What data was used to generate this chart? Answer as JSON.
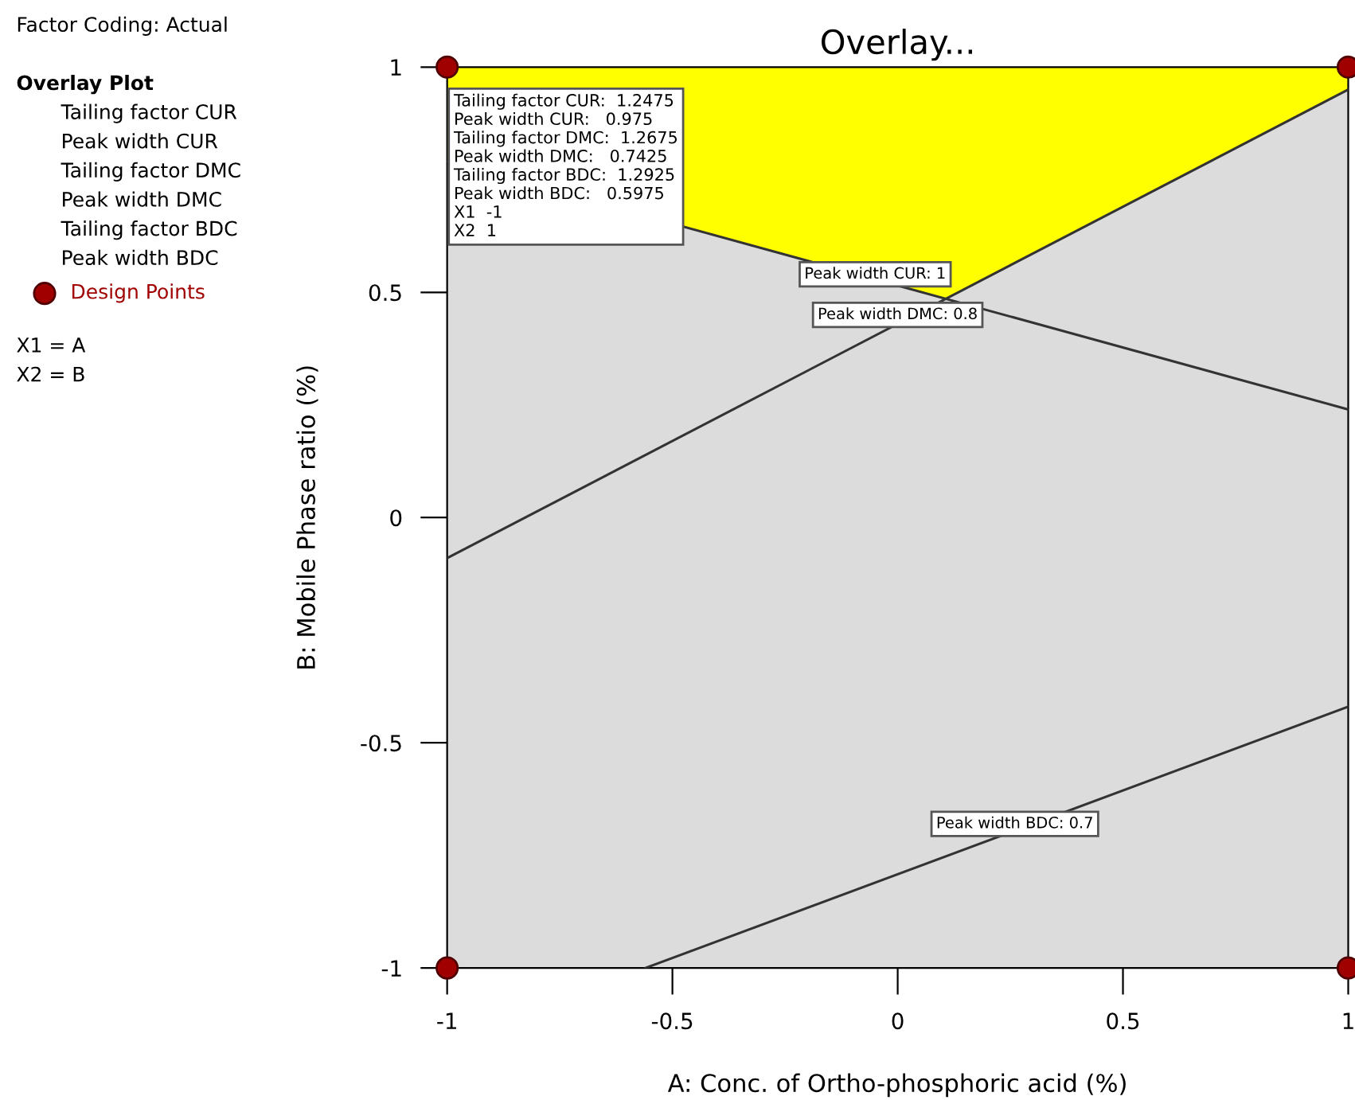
{
  "chart_data": {
    "type": "line",
    "title": "Overlay...",
    "xlabel": "A: Conc. of Ortho-phosphoric acid (%)",
    "ylabel": "B: Mobile Phase ratio (%)",
    "xlim": [
      -1,
      1
    ],
    "ylim": [
      -1,
      1
    ],
    "xticks": [
      -1,
      -0.5,
      0,
      0.5,
      1
    ],
    "yticks": [
      -1,
      -0.5,
      0,
      0.5,
      1
    ],
    "grid": false,
    "legend": "left",
    "series": [
      {
        "type": "area",
        "color": "#ffff00",
        "x": [
          -1,
          0.107,
          1,
          1,
          -1
        ],
        "values": [
          0.79,
          0.486,
          0.95,
          1,
          1
        ]
      },
      {
        "color": "#333333",
        "x": [
          -1,
          1
        ],
        "values": [
          0.79,
          0.24
        ]
      },
      {
        "color": "#333333",
        "x": [
          -1,
          1
        ],
        "values": [
          -0.09,
          0.95
        ]
      },
      {
        "color": "#333333",
        "x": [
          -0.56,
          1
        ],
        "values": [
          -1,
          -0.42
        ]
      },
      {
        "type": "scatter",
        "name": "Design Points",
        "color": "#a00000",
        "marker": "circle",
        "x": [
          -1,
          1,
          -1,
          1
        ],
        "values": [
          1,
          1,
          -1,
          -1
        ]
      }
    ],
    "annotations": [
      "Factor Coding: Actual",
      "Overlay Plot",
      "Tailing factor CUR",
      "Peak width CUR",
      "Tailing factor DMC",
      "Peak width DMC",
      "Tailing factor BDC",
      "Peak width BDC",
      "X1 = A",
      "X2 = B",
      {
        "text": "Tailing factor CUR:  1.2475\nPeak width CUR:   0.975\nTailing factor DMC:  1.2675\nPeak width DMC:   0.7425\nTailing factor BDC:  1.2925\nPeak width BDC:   0.5975\nX1  -1\nX2  1",
        "x": -1,
        "y": 1
      },
      {
        "text": "Peak width CUR: 1",
        "x": -0.05,
        "y": 0.54
      },
      {
        "text": "Peak width DMC: 0.8",
        "x": 0.0,
        "y": 0.45
      },
      {
        "text": "Peak width BDC: 0.7",
        "x": 0.26,
        "y": -0.68
      }
    ]
  }
}
